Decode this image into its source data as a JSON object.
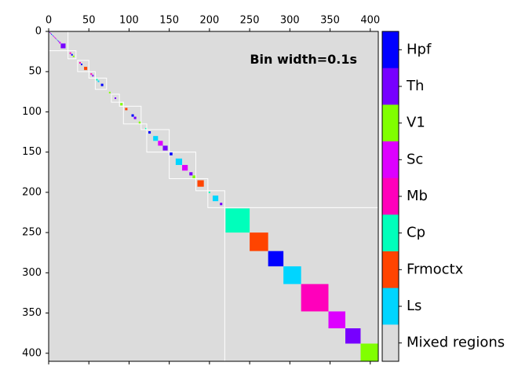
{
  "chart_data": {
    "type": "heatmap",
    "title": "",
    "annotation": "Bin width=0.1s",
    "xlim": [
      0,
      410
    ],
    "ylim": [
      0,
      410
    ],
    "y_inverted": true,
    "x_axis_position": "top",
    "xticks": [
      0,
      50,
      100,
      150,
      200,
      250,
      300,
      350,
      400
    ],
    "yticks": [
      0,
      50,
      100,
      150,
      200,
      250,
      300,
      350,
      400
    ],
    "grid": false,
    "background_color": "#dcdcdc",
    "colorbar": {
      "position": "right",
      "categories": [
        {
          "name": "Hpf",
          "color": "#0000ff"
        },
        {
          "name": "Th",
          "color": "#7700ff"
        },
        {
          "name": "V1",
          "color": "#80ff00"
        },
        {
          "name": "Sc",
          "color": "#dd00ff"
        },
        {
          "name": "Mb",
          "color": "#ff00bb"
        },
        {
          "name": "Cp",
          "color": "#00ffbb"
        },
        {
          "name": "Frmoctx",
          "color": "#ff4400"
        },
        {
          "name": "Ls",
          "color": "#00d5ff"
        },
        {
          "name": "Mixed regions",
          "color": "#dcdcdc"
        }
      ]
    },
    "cells": [
      {
        "x0": 1,
        "x1": 2,
        "region": "Th"
      },
      {
        "x0": 2,
        "x1": 3,
        "region": "Sc"
      },
      {
        "x0": 3,
        "x1": 4,
        "region": "Hpf"
      },
      {
        "x0": 4,
        "x1": 5,
        "region": "Ls"
      },
      {
        "x0": 5,
        "x1": 6,
        "region": "Th"
      },
      {
        "x0": 6,
        "x1": 7,
        "region": "Sc"
      },
      {
        "x0": 7,
        "x1": 8,
        "region": "Mb"
      },
      {
        "x0": 8,
        "x1": 9,
        "region": "Th"
      },
      {
        "x0": 9,
        "x1": 10,
        "region": "Sc"
      },
      {
        "x0": 10,
        "x1": 11,
        "region": "Cp"
      },
      {
        "x0": 11,
        "x1": 12,
        "region": "Th"
      },
      {
        "x0": 12,
        "x1": 13,
        "region": "Hpf"
      },
      {
        "x0": 13,
        "x1": 15,
        "region": "Sc"
      },
      {
        "x0": 15,
        "x1": 21,
        "region": "Th"
      },
      {
        "x0": 26,
        "x1": 28,
        "region": "Mb"
      },
      {
        "x0": 28,
        "x1": 30,
        "region": "Hpf"
      },
      {
        "x0": 30,
        "x1": 32,
        "region": "V1"
      },
      {
        "x0": 38,
        "x1": 40,
        "region": "Mb"
      },
      {
        "x0": 40,
        "x1": 42,
        "region": "Hpf"
      },
      {
        "x0": 44,
        "x1": 48,
        "region": "Frmoctx"
      },
      {
        "x0": 52,
        "x1": 54,
        "region": "Mb"
      },
      {
        "x0": 54,
        "x1": 56,
        "region": "Th"
      },
      {
        "x0": 59,
        "x1": 61,
        "region": "Cp"
      },
      {
        "x0": 61,
        "x1": 63,
        "region": "Ls"
      },
      {
        "x0": 65,
        "x1": 68,
        "region": "Hpf"
      },
      {
        "x0": 75,
        "x1": 77,
        "region": "V1"
      },
      {
        "x0": 82,
        "x1": 84,
        "region": "Th"
      },
      {
        "x0": 89,
        "x1": 92,
        "region": "V1"
      },
      {
        "x0": 95,
        "x1": 98,
        "region": "Frmoctx"
      },
      {
        "x0": 103,
        "x1": 106,
        "region": "Hpf"
      },
      {
        "x0": 106,
        "x1": 109,
        "region": "Th"
      },
      {
        "x0": 112,
        "x1": 115,
        "region": "V1"
      },
      {
        "x0": 120,
        "x1": 122,
        "region": "Cp"
      },
      {
        "x0": 124,
        "x1": 127,
        "region": "Hpf"
      },
      {
        "x0": 130,
        "x1": 136,
        "region": "Ls"
      },
      {
        "x0": 136,
        "x1": 142,
        "region": "Sc"
      },
      {
        "x0": 142,
        "x1": 148,
        "region": "Th"
      },
      {
        "x0": 150,
        "x1": 154,
        "region": "Hpf"
      },
      {
        "x0": 158,
        "x1": 166,
        "region": "Ls"
      },
      {
        "x0": 166,
        "x1": 173,
        "region": "Sc"
      },
      {
        "x0": 175,
        "x1": 179,
        "region": "Th"
      },
      {
        "x0": 179,
        "x1": 183,
        "region": "V1"
      },
      {
        "x0": 185,
        "x1": 193,
        "region": "Frmoctx"
      },
      {
        "x0": 199,
        "x1": 201,
        "region": "Cp"
      },
      {
        "x0": 204,
        "x1": 211,
        "region": "Ls"
      },
      {
        "x0": 213,
        "x1": 216,
        "region": "Th"
      },
      {
        "x0": 220,
        "x1": 250,
        "region": "Cp"
      },
      {
        "x0": 250,
        "x1": 273,
        "region": "Frmoctx"
      },
      {
        "x0": 273,
        "x1": 292,
        "region": "Hpf"
      },
      {
        "x0": 292,
        "x1": 314,
        "region": "Ls"
      },
      {
        "x0": 314,
        "x1": 348,
        "region": "Mb"
      },
      {
        "x0": 348,
        "x1": 369,
        "region": "Sc"
      },
      {
        "x0": 369,
        "x1": 388,
        "region": "Th"
      },
      {
        "x0": 388,
        "x1": 413,
        "region": "V1"
      }
    ],
    "outline_boxes": [
      {
        "x0": 0,
        "x1": 24
      },
      {
        "x0": 24,
        "x1": 34
      },
      {
        "x0": 36,
        "x1": 50
      },
      {
        "x0": 50,
        "x1": 58
      },
      {
        "x0": 58,
        "x1": 72
      },
      {
        "x0": 78,
        "x1": 88
      },
      {
        "x0": 88,
        "x1": 93
      },
      {
        "x0": 93,
        "x1": 115
      },
      {
        "x0": 115,
        "x1": 122
      },
      {
        "x0": 122,
        "x1": 150
      },
      {
        "x0": 150,
        "x1": 183
      },
      {
        "x0": 183,
        "x1": 198
      },
      {
        "x0": 198,
        "x1": 219
      }
    ],
    "big_box": {
      "x0": 219,
      "x1": 413
    }
  }
}
